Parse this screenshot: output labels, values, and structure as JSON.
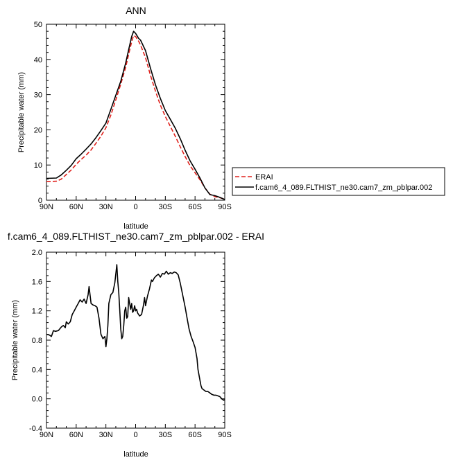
{
  "chart_data": [
    {
      "type": "line",
      "title": "ANN",
      "xlabel": "latitude",
      "ylabel": "Precipitable water (mm)",
      "xlim": [
        90,
        -90
      ],
      "ylim": [
        0,
        50
      ],
      "xticks": [
        {
          "value": 90,
          "label": "90N"
        },
        {
          "value": 60,
          "label": "60N"
        },
        {
          "value": 30,
          "label": "30N"
        },
        {
          "value": 0,
          "label": "0"
        },
        {
          "value": -30,
          "label": "30S"
        },
        {
          "value": -60,
          "label": "60S"
        },
        {
          "value": -90,
          "label": "90S"
        }
      ],
      "yticks": [
        0,
        10,
        20,
        30,
        40,
        50
      ],
      "grid": false,
      "legend_position": "right",
      "series": [
        {
          "name": "ERAI",
          "color": "#e0201b",
          "dash": "dashed",
          "points": [
            [
              90,
              5.3
            ],
            [
              80,
              5.4
            ],
            [
              75,
              6
            ],
            [
              70,
              7.3
            ],
            [
              65,
              8.6
            ],
            [
              60,
              10.2
            ],
            [
              55,
              11.6
            ],
            [
              50,
              12.8
            ],
            [
              45,
              14.3
            ],
            [
              40,
              16.2
            ],
            [
              35,
              18.2
            ],
            [
              30,
              20.6
            ],
            [
              25,
              24.2
            ],
            [
              20,
              28.5
            ],
            [
              15,
              33
            ],
            [
              10,
              37.8
            ],
            [
              7,
              41.5
            ],
            [
              4,
              45
            ],
            [
              2,
              46.8
            ],
            [
              0,
              46.5
            ],
            [
              -3,
              45.2
            ],
            [
              -5,
              44.1
            ],
            [
              -10,
              40.5
            ],
            [
              -15,
              35.5
            ],
            [
              -20,
              31
            ],
            [
              -25,
              27
            ],
            [
              -30,
              23.8
            ],
            [
              -35,
              21
            ],
            [
              -40,
              18.2
            ],
            [
              -45,
              15.2
            ],
            [
              -50,
              12.4
            ],
            [
              -55,
              9.8
            ],
            [
              -60,
              7.8
            ],
            [
              -65,
              5.8
            ],
            [
              -70,
              3.5
            ],
            [
              -75,
              1.7
            ],
            [
              -80,
              1
            ],
            [
              -85,
              0.7
            ],
            [
              -90,
              0.3
            ]
          ]
        },
        {
          "name": "f.cam6_4_089.FLTHIST_ne30.cam7_zm_pblpar.002",
          "color": "#000000",
          "dash": "solid",
          "points": [
            [
              90,
              6.2
            ],
            [
              80,
              6.3
            ],
            [
              75,
              7.2
            ],
            [
              70,
              8.5
            ],
            [
              65,
              9.9
            ],
            [
              60,
              11.8
            ],
            [
              55,
              13.1
            ],
            [
              50,
              14.5
            ],
            [
              45,
              16
            ],
            [
              40,
              17.8
            ],
            [
              35,
              19.8
            ],
            [
              30,
              21.9
            ],
            [
              25,
              25.8
            ],
            [
              20,
              29.8
            ],
            [
              15,
              33.8
            ],
            [
              10,
              39
            ],
            [
              7,
              42.8
            ],
            [
              4,
              46.5
            ],
            [
              2,
              48
            ],
            [
              0,
              47.4
            ],
            [
              -3,
              46
            ],
            [
              -5,
              45.5
            ],
            [
              -10,
              42.5
            ],
            [
              -15,
              37.5
            ],
            [
              -20,
              32.8
            ],
            [
              -25,
              28.9
            ],
            [
              -30,
              25.5
            ],
            [
              -35,
              23
            ],
            [
              -40,
              20.5
            ],
            [
              -45,
              17.5
            ],
            [
              -50,
              14.2
            ],
            [
              -55,
              11.2
            ],
            [
              -60,
              8.8
            ],
            [
              -65,
              6.3
            ],
            [
              -70,
              3.5
            ],
            [
              -75,
              1.6
            ],
            [
              -80,
              1.3
            ],
            [
              -85,
              0.8
            ],
            [
              -90,
              0.2
            ]
          ]
        }
      ]
    },
    {
      "type": "line",
      "title": "f.cam6_4_089.FLTHIST_ne30.cam7_zm_pblpar.002 - ERAI",
      "xlabel": "latitude",
      "ylabel": "Precipitable water (mm)",
      "xlim": [
        90,
        -90
      ],
      "ylim": [
        -0.4,
        2.0
      ],
      "xticks": [
        {
          "value": 90,
          "label": "90N"
        },
        {
          "value": 60,
          "label": "60N"
        },
        {
          "value": 30,
          "label": "30N"
        },
        {
          "value": 0,
          "label": "0"
        },
        {
          "value": -30,
          "label": "30S"
        },
        {
          "value": -60,
          "label": "60S"
        },
        {
          "value": -90,
          "label": "90S"
        }
      ],
      "yticks": [
        {
          "value": -0.4,
          "label": "-0.4"
        },
        {
          "value": 0.0,
          "label": "0.0"
        },
        {
          "value": 0.4,
          "label": "0.4"
        },
        {
          "value": 0.8,
          "label": "0.8"
        },
        {
          "value": 1.2,
          "label": "1.2"
        },
        {
          "value": 1.6,
          "label": "1.6"
        },
        {
          "value": 2.0,
          "label": "2.0"
        }
      ],
      "grid": false,
      "series": [
        {
          "color": "#000000",
          "dash": "solid",
          "points": [
            [
              90,
              0.88
            ],
            [
              87,
              0.87
            ],
            [
              85,
              0.85
            ],
            [
              83,
              0.93
            ],
            [
              81,
              0.92
            ],
            [
              78,
              0.93
            ],
            [
              75,
              0.98
            ],
            [
              73,
              1.0
            ],
            [
              71,
              0.97
            ],
            [
              70,
              1.05
            ],
            [
              68,
              1.02
            ],
            [
              66,
              1.05
            ],
            [
              64,
              1.15
            ],
            [
              62,
              1.2
            ],
            [
              60,
              1.25
            ],
            [
              58,
              1.3
            ],
            [
              56,
              1.35
            ],
            [
              54,
              1.32
            ],
            [
              52,
              1.36
            ],
            [
              50,
              1.3
            ],
            [
              48,
              1.42
            ],
            [
              47,
              1.53
            ],
            [
              45,
              1.3
            ],
            [
              43,
              1.28
            ],
            [
              41,
              1.27
            ],
            [
              39,
              1.25
            ],
            [
              37,
              1.1
            ],
            [
              35,
              0.88
            ],
            [
              33,
              0.82
            ],
            [
              31,
              0.85
            ],
            [
              30,
              0.71
            ],
            [
              29,
              0.82
            ],
            [
              28,
              1.0
            ],
            [
              27,
              1.3
            ],
            [
              25,
              1.42
            ],
            [
              23,
              1.45
            ],
            [
              21,
              1.58
            ],
            [
              20,
              1.7
            ],
            [
              19,
              1.83
            ],
            [
              18,
              1.6
            ],
            [
              17,
              1.45
            ],
            [
              16,
              1.2
            ],
            [
              15,
              0.95
            ],
            [
              14,
              0.82
            ],
            [
              13,
              0.85
            ],
            [
              12,
              1.0
            ],
            [
              11,
              1.2
            ],
            [
              10,
              1.25
            ],
            [
              9,
              1.1
            ],
            [
              8,
              1.12
            ],
            [
              7,
              1.38
            ],
            [
              6,
              1.3
            ],
            [
              5,
              1.22
            ],
            [
              4,
              1.3
            ],
            [
              3,
              1.18
            ],
            [
              2,
              1.2
            ],
            [
              1,
              1.27
            ],
            [
              0,
              1.2
            ],
            [
              -1,
              1.22
            ],
            [
              -2,
              1.17
            ],
            [
              -4,
              1.13
            ],
            [
              -6,
              1.15
            ],
            [
              -8,
              1.28
            ],
            [
              -9,
              1.38
            ],
            [
              -10,
              1.27
            ],
            [
              -12,
              1.4
            ],
            [
              -14,
              1.5
            ],
            [
              -16,
              1.62
            ],
            [
              -17,
              1.6
            ],
            [
              -19,
              1.65
            ],
            [
              -21,
              1.68
            ],
            [
              -23,
              1.7
            ],
            [
              -25,
              1.66
            ],
            [
              -27,
              1.71
            ],
            [
              -29,
              1.7
            ],
            [
              -31,
              1.74
            ],
            [
              -33,
              1.7
            ],
            [
              -35,
              1.72
            ],
            [
              -37,
              1.71
            ],
            [
              -39,
              1.73
            ],
            [
              -41,
              1.72
            ],
            [
              -43,
              1.69
            ],
            [
              -45,
              1.58
            ],
            [
              -47,
              1.45
            ],
            [
              -50,
              1.25
            ],
            [
              -52,
              1.1
            ],
            [
              -54,
              0.95
            ],
            [
              -56,
              0.85
            ],
            [
              -58,
              0.78
            ],
            [
              -60,
              0.7
            ],
            [
              -62,
              0.55
            ],
            [
              -63,
              0.4
            ],
            [
              -65,
              0.25
            ],
            [
              -66,
              0.18
            ],
            [
              -67,
              0.14
            ],
            [
              -69,
              0.12
            ],
            [
              -71,
              0.1
            ],
            [
              -73,
              0.1
            ],
            [
              -75,
              0.08
            ],
            [
              -77,
              0.06
            ],
            [
              -79,
              0.05
            ],
            [
              -81,
              0.05
            ],
            [
              -83,
              0.04
            ],
            [
              -85,
              0.03
            ],
            [
              -87,
              0.0
            ],
            [
              -89,
              -0.02
            ],
            [
              -90,
              -0.01
            ]
          ]
        }
      ]
    }
  ]
}
